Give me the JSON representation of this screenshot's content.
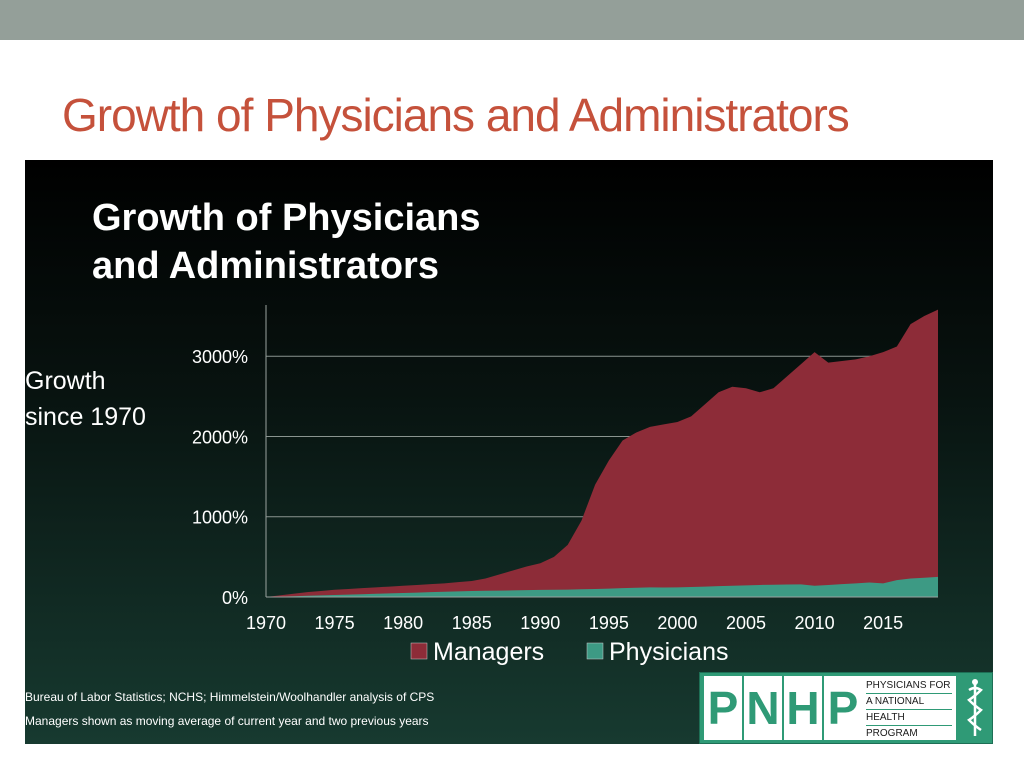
{
  "slide": {
    "title": "Growth of Physicians and Administrators"
  },
  "chart": {
    "title": "Growth of Physicians\nand Administrators",
    "ylabel": "Growth\nsince 1970"
  },
  "sources": {
    "line1": "Bureau of Labor Statistics; NCHS; Himmelstein/Woolhandler analysis of CPS",
    "line2": "Managers shown as moving average of current year and two previous years"
  },
  "logo": {
    "letters": [
      "P",
      "N",
      "H",
      "P"
    ],
    "words": [
      "PHYSICIANS FOR",
      "A NATIONAL",
      "HEALTH",
      "PROGRAM"
    ]
  },
  "colors": {
    "managers": "#8d2c38",
    "physicians": "#3d9a84",
    "title": "#c5513b",
    "top_bar": "#949f99"
  },
  "chart_data": {
    "type": "area",
    "title": "Growth of Physicians\nand Administrators",
    "ylabel": "Growth\nsince 1970",
    "xlabel": "",
    "x": [
      1970,
      1971,
      1972,
      1973,
      1974,
      1975,
      1976,
      1977,
      1978,
      1979,
      1980,
      1981,
      1982,
      1983,
      1984,
      1985,
      1986,
      1987,
      1988,
      1989,
      1990,
      1991,
      1992,
      1993,
      1994,
      1995,
      1996,
      1997,
      1998,
      1999,
      2000,
      2001,
      2002,
      2003,
      2004,
      2005,
      2006,
      2007,
      2008,
      2009,
      2010,
      2011,
      2012,
      2013,
      2014,
      2015,
      2016,
      2017,
      2018,
      2019
    ],
    "series": [
      {
        "name": "Managers",
        "values": [
          0,
          20,
          40,
          60,
          75,
          90,
          100,
          110,
          120,
          130,
          140,
          150,
          160,
          170,
          185,
          200,
          230,
          280,
          330,
          380,
          420,
          500,
          650,
          950,
          1400,
          1700,
          1950,
          2050,
          2120,
          2150,
          2180,
          2250,
          2400,
          2550,
          2620,
          2600,
          2550,
          2600,
          2750,
          2900,
          3050,
          2920,
          2940,
          2960,
          3000,
          3050,
          3120,
          3400,
          3500,
          3580
        ]
      },
      {
        "name": "Physicians",
        "values": [
          0,
          5,
          10,
          15,
          20,
          25,
          30,
          35,
          40,
          45,
          50,
          55,
          60,
          65,
          70,
          75,
          78,
          80,
          82,
          85,
          88,
          90,
          92,
          96,
          100,
          105,
          110,
          115,
          120,
          118,
          120,
          125,
          130,
          135,
          140,
          145,
          150,
          152,
          155,
          158,
          140,
          150,
          160,
          170,
          180,
          170,
          210,
          230,
          240,
          250
        ]
      }
    ],
    "x_ticks": [
      "1970",
      "1975",
      "1980",
      "1985",
      "1990",
      "1995",
      "2000",
      "2005",
      "2010",
      "2015"
    ],
    "y_ticks": [
      "0%",
      "1000%",
      "2000%",
      "3000%"
    ],
    "y_tick_values": [
      0,
      1000,
      2000,
      3000
    ],
    "xlim": [
      1970,
      2019
    ],
    "ylim": [
      0,
      3700
    ],
    "grid": true,
    "legend": "bottom-center",
    "legend_labels": [
      "Managers",
      "Physicians"
    ]
  }
}
